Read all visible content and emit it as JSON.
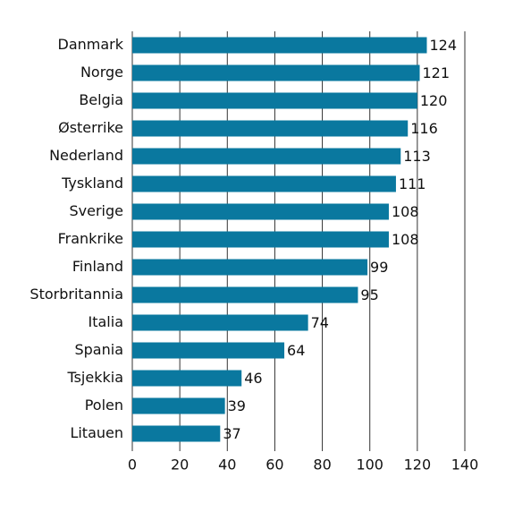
{
  "chart_data": {
    "type": "barh",
    "categories": [
      "Danmark",
      "Norge",
      "Belgia",
      "Østerrike",
      "Nederland",
      "Tyskland",
      "Sverige",
      "Frankrike",
      "Finland",
      "Storbritannia",
      "Italia",
      "Spania",
      "Tsjekkia",
      "Polen",
      "Litauen"
    ],
    "values": [
      124,
      121,
      120,
      116,
      113,
      111,
      108,
      108,
      99,
      95,
      74,
      64,
      46,
      39,
      37
    ],
    "color": "#0a789f",
    "xlim": [
      0,
      140
    ],
    "xticks": [
      0,
      20,
      40,
      60,
      80,
      100,
      120,
      140
    ],
    "grid": true
  }
}
